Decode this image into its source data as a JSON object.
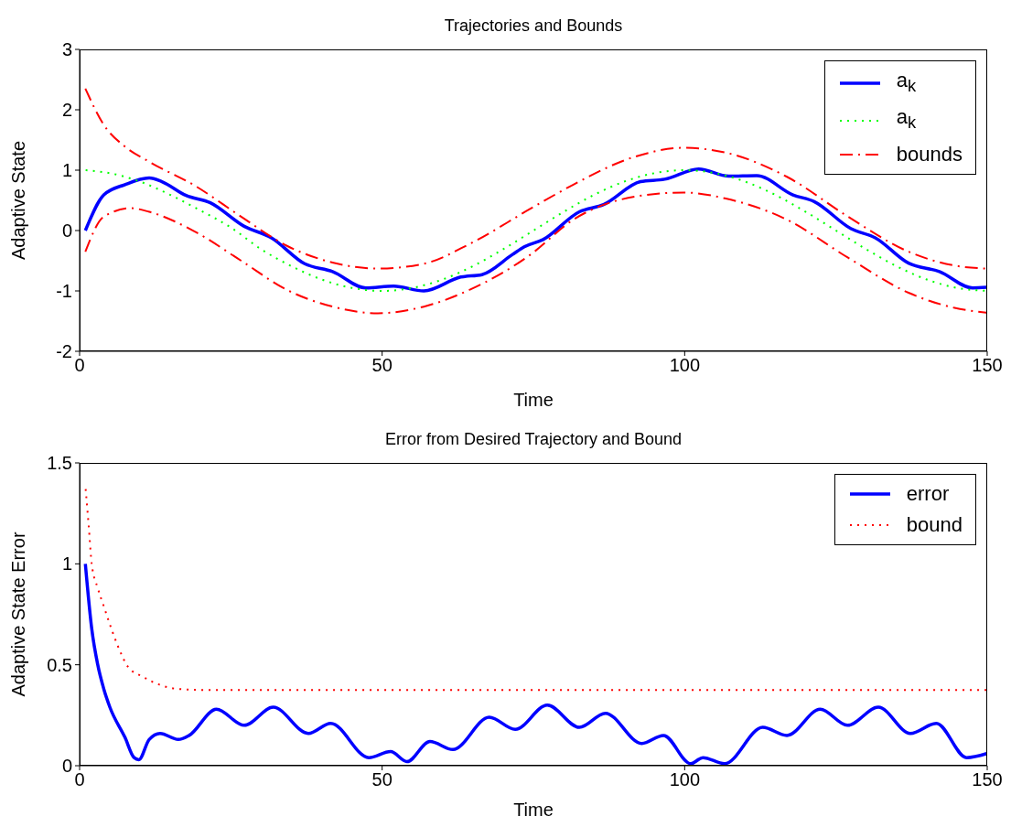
{
  "chart_data": [
    {
      "type": "line",
      "title": "Trajectories and Bounds",
      "xlabel": "Time",
      "ylabel": "Adaptive State",
      "xlim": [
        0,
        150
      ],
      "xticks": [
        0,
        50,
        100,
        150
      ],
      "ylim": [
        -2,
        3
      ],
      "yticks": [
        -2,
        -1,
        0,
        1,
        2,
        3
      ],
      "legend": "top right",
      "series": [
        {
          "name": "a$_{k}$",
          "color": "#0000ff",
          "line_style": "solid",
          "x": [
            0.95,
            4,
            7.5,
            11.5,
            13.6,
            17.6,
            21.6,
            27.2,
            31.7,
            37.2,
            41.8,
            47.3,
            51.9,
            56.9,
            63,
            66.5,
            71.5,
            73.5,
            76.6,
            82.6,
            86.6,
            92.7,
            96.7,
            102.3,
            107.3,
            111.9,
            117.9,
            121.4,
            127.5,
            131.5,
            137,
            142.1,
            147.6,
            149.9
          ],
          "values": [
            0,
            0.59,
            0.76,
            0.87,
            0.81,
            0.58,
            0.46,
            0.07,
            -0.12,
            -0.55,
            -0.68,
            -0.95,
            -0.92,
            -1,
            -0.77,
            -0.73,
            -0.4,
            -0.27,
            -0.15,
            0.31,
            0.43,
            0.81,
            0.85,
            1.02,
            0.9,
            0.91,
            0.59,
            0.48,
            0.03,
            -0.12,
            -0.54,
            -0.68,
            -0.95,
            -0.94
          ]
        },
        {
          "name": "a$_{k}$",
          "color": "#00ff00",
          "line_style": "dotted",
          "x": [
            1,
            5,
            10,
            15,
            20,
            25,
            30,
            35,
            40,
            45,
            50,
            55,
            60,
            65,
            70,
            75,
            80,
            85,
            90,
            95,
            100,
            105,
            110,
            115,
            120,
            125,
            130,
            135,
            140,
            145,
            150
          ],
          "values": [
            1,
            0.95,
            0.81,
            0.59,
            0.33,
            0.05,
            -0.31,
            -0.59,
            -0.81,
            -0.95,
            -1,
            -0.95,
            -0.81,
            -0.59,
            -0.31,
            0,
            0.31,
            0.59,
            0.81,
            0.95,
            1,
            0.95,
            0.81,
            0.59,
            0.31,
            0,
            -0.31,
            -0.59,
            -0.81,
            -0.95,
            -1
          ]
        },
        {
          "name": "bounds",
          "color": "#ff0000",
          "line_style": "dashed",
          "x": [
            0.95,
            4,
            7.5,
            11.5,
            19.1,
            26.7,
            34.2,
            41.8,
            49.3,
            56.9,
            64.5,
            74.5,
            81.6,
            91.7,
            99.8,
            106.8,
            116.9,
            127,
            137,
            144.6,
            149.9
          ],
          "values": [
            2.35,
            1.75,
            1.39,
            1.14,
            0.74,
            0.23,
            -0.25,
            -0.53,
            -0.63,
            -0.55,
            -0.22,
            0.36,
            0.76,
            1.22,
            1.37,
            1.29,
            0.89,
            0.23,
            -0.35,
            -0.58,
            -0.63
          ]
        },
        {
          "color": "#ff0000",
          "line_style": "dashed",
          "x": [
            0.95,
            4,
            8.5,
            11.5,
            19.1,
            26.7,
            34.2,
            41.8,
            49.3,
            56.9,
            64.5,
            74.5,
            81.6,
            91.7,
            99.8,
            106.8,
            116.9,
            127,
            137,
            144.6,
            149.9
          ],
          "values": [
            -0.35,
            0.23,
            0.37,
            0.31,
            -0.02,
            -0.5,
            -0.98,
            -1.26,
            -1.37,
            -1.26,
            -0.98,
            -0.4,
            0.18,
            0.56,
            0.63,
            0.53,
            0.18,
            -0.45,
            -1.03,
            -1.28,
            -1.36
          ]
        }
      ]
    },
    {
      "type": "line",
      "title": "Error from Desired Trajectory and Bound",
      "xlabel": "Time",
      "ylabel": "Adaptive State Error",
      "xlim": [
        0,
        150
      ],
      "xticks": [
        0,
        50,
        100,
        150
      ],
      "ylim": [
        0,
        1.5
      ],
      "yticks": [
        0,
        0.5,
        1,
        1.5
      ],
      "legend": "top right",
      "series": [
        {
          "name": "error",
          "color": "#0000ff",
          "line_style": "solid",
          "x": [
            0.95,
            2,
            3,
            4,
            5,
            7.5,
            9,
            9.8,
            11.5,
            13.3,
            16.3,
            18.1,
            22.6,
            27.2,
            32,
            37.8,
            41.5,
            47.8,
            51.4,
            54.1,
            57.9,
            61.7,
            67.7,
            72,
            77.3,
            82.6,
            86.9,
            92.9,
            96.5,
            101,
            103,
            106.6,
            112.9,
            116.9,
            122.4,
            126.9,
            132,
            137.3,
            141.6,
            146.6,
            149.9
          ],
          "values": [
            1,
            0.68,
            0.5,
            0.38,
            0.29,
            0.14,
            0.04,
            0.03,
            0.13,
            0.16,
            0.13,
            0.15,
            0.28,
            0.2,
            0.29,
            0.16,
            0.21,
            0.04,
            0.07,
            0.02,
            0.12,
            0.08,
            0.24,
            0.18,
            0.3,
            0.19,
            0.26,
            0.11,
            0.15,
            0.01,
            0.04,
            0.01,
            0.19,
            0.15,
            0.28,
            0.2,
            0.29,
            0.16,
            0.21,
            0.04,
            0.06
          ]
        },
        {
          "name": "bound",
          "color": "#ff0000",
          "line_style": "dotted",
          "x": [
            1,
            1.5,
            2,
            3,
            4,
            5,
            6.5,
            8,
            10.5,
            13.3,
            16.3,
            20.9,
            150
          ],
          "values": [
            1.37,
            1.19,
            1,
            0.88,
            0.79,
            0.7,
            0.58,
            0.49,
            0.44,
            0.4,
            0.38,
            0.375,
            0.375
          ]
        }
      ]
    }
  ]
}
